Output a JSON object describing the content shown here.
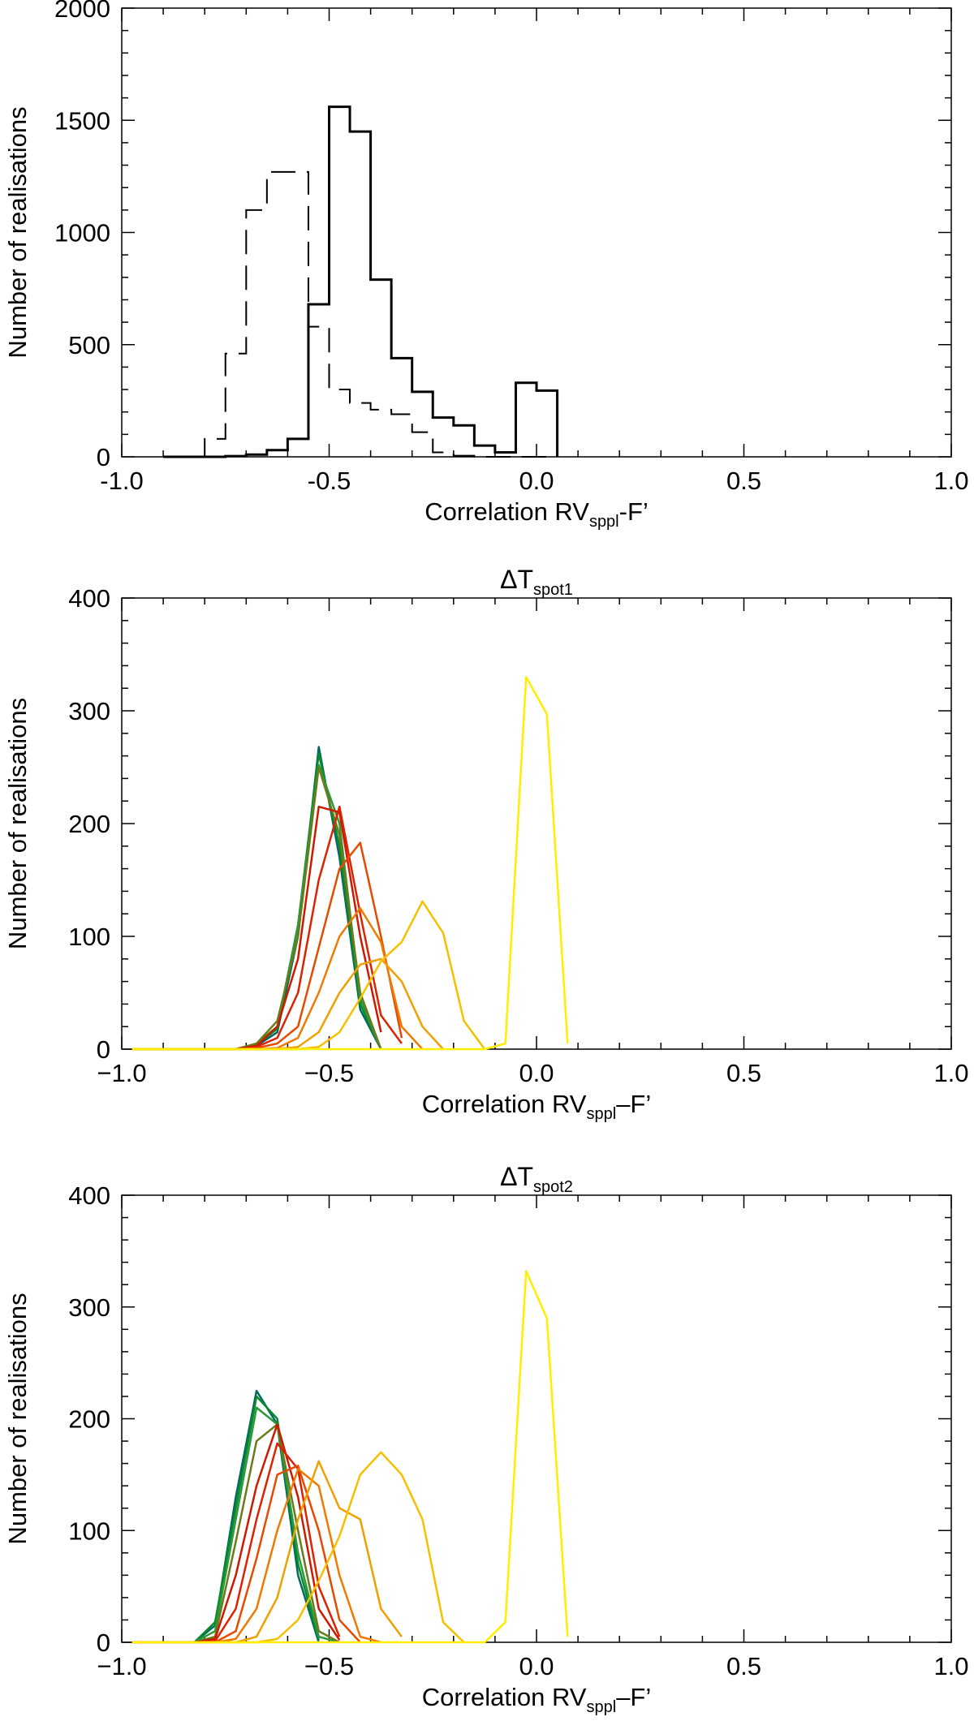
{
  "chart_data": [
    {
      "type": "line",
      "style": "histogram-step",
      "title": "",
      "xlabel_main": "Correlation RV",
      "xlabel_sub": "sppl",
      "xlabel_tail": "-F’",
      "ylabel": "Number of realisations",
      "xlim": [
        -1.0,
        1.0
      ],
      "ylim": [
        0,
        2000
      ],
      "x_ticks": [
        "-1.0",
        "-0.5",
        "0.0",
        "0.5",
        "1.0"
      ],
      "x_tick_values": [
        -1.0,
        -0.5,
        0.0,
        0.5,
        1.0
      ],
      "y_ticks": [
        "2000",
        "1500",
        "1000",
        "500",
        "0"
      ],
      "y_tick_values": [
        2000,
        1500,
        1000,
        500,
        0
      ],
      "grid": false,
      "bin_edges": [
        -0.9,
        -0.85,
        -0.8,
        -0.75,
        -0.7,
        -0.65,
        -0.6,
        -0.55,
        -0.5,
        -0.45,
        -0.4,
        -0.35,
        -0.3,
        -0.25,
        -0.2,
        -0.15,
        -0.1,
        -0.05,
        0.0,
        0.05
      ],
      "series": [
        {
          "line": "solid",
          "color": "#000000",
          "values": [
            0,
            0,
            0,
            3,
            10,
            30,
            80,
            680,
            1560,
            1450,
            790,
            440,
            290,
            175,
            140,
            50,
            20,
            330,
            295
          ]
        },
        {
          "line": "dashed",
          "color": "#000000",
          "values": [
            0,
            0,
            80,
            460,
            1100,
            1270,
            1270,
            580,
            300,
            240,
            210,
            190,
            110,
            20,
            5,
            0,
            0,
            0,
            0
          ]
        }
      ]
    },
    {
      "type": "line",
      "title_main": "ΔT",
      "title_sub": "spot1",
      "xlabel_main": "Correlation RV",
      "xlabel_sub": "sppl",
      "xlabel_tail": "–F’",
      "ylabel": "Number of realisations",
      "xlim": [
        -1.0,
        1.0
      ],
      "ylim": [
        0,
        400
      ],
      "x_ticks": [
        "−1.0",
        "−0.5",
        "0.0",
        "0.5",
        "1.0"
      ],
      "x_tick_values": [
        -1.0,
        -0.5,
        0.0,
        0.5,
        1.0
      ],
      "y_ticks": [
        "400",
        "300",
        "200",
        "100",
        "0"
      ],
      "y_tick_values": [
        400,
        300,
        200,
        100,
        0
      ],
      "grid": false,
      "x": [
        -0.975,
        -0.925,
        -0.875,
        -0.825,
        -0.775,
        -0.725,
        -0.675,
        -0.625,
        -0.575,
        -0.525,
        -0.475,
        -0.425,
        -0.375,
        -0.325,
        -0.275,
        -0.225,
        -0.175,
        -0.125,
        -0.075,
        -0.025,
        0.025,
        0.075
      ],
      "series": [
        {
          "color": "#006a60",
          "values": [
            0,
            0,
            0,
            0,
            0,
            0,
            3,
            15,
            100,
            268,
            170,
            35,
            0,
            null,
            null,
            null,
            null,
            null,
            null,
            null,
            null,
            null
          ]
        },
        {
          "color": "#0a8a2a",
          "values": [
            0,
            0,
            0,
            0,
            0,
            0,
            4,
            18,
            110,
            262,
            180,
            40,
            0,
            null,
            null,
            null,
            null,
            null,
            null,
            null,
            null,
            null
          ]
        },
        {
          "color": "#2a9a3a",
          "values": [
            0,
            0,
            0,
            0,
            0,
            0,
            5,
            20,
            110,
            252,
            200,
            45,
            0,
            null,
            null,
            null,
            null,
            null,
            null,
            null,
            null,
            null
          ]
        },
        {
          "color": "#6b7a1a",
          "values": [
            0,
            0,
            0,
            0,
            0,
            0,
            5,
            25,
            100,
            250,
            190,
            50,
            0,
            null,
            null,
            null,
            null,
            null,
            null,
            null,
            null,
            null
          ]
        },
        {
          "color": "#cc1a00",
          "values": [
            0,
            0,
            0,
            0,
            0,
            0,
            3,
            20,
            80,
            215,
            210,
            100,
            15,
            null,
            null,
            null,
            null,
            null,
            null,
            null,
            null,
            null
          ]
        },
        {
          "color": "#dd2200",
          "values": [
            0,
            0,
            0,
            0,
            0,
            0,
            2,
            10,
            50,
            150,
            215,
            120,
            30,
            5,
            null,
            null,
            null,
            null,
            null,
            null,
            null,
            null
          ]
        },
        {
          "color": "#e64a00",
          "values": [
            0,
            0,
            0,
            0,
            0,
            0,
            1,
            5,
            20,
            90,
            160,
            183,
            100,
            10,
            null,
            null,
            null,
            null,
            null,
            null,
            null,
            null
          ]
        },
        {
          "color": "#f07a00",
          "values": [
            0,
            0,
            0,
            0,
            0,
            0,
            0,
            1,
            10,
            50,
            100,
            125,
            95,
            20,
            0,
            null,
            null,
            null,
            null,
            null,
            null,
            null
          ]
        },
        {
          "color": "#f0a000",
          "values": [
            0,
            0,
            0,
            0,
            0,
            0,
            0,
            0,
            2,
            15,
            50,
            75,
            80,
            60,
            20,
            0,
            null,
            null,
            null,
            null,
            null,
            null
          ]
        },
        {
          "color": "#f5c000",
          "values": [
            0,
            0,
            0,
            0,
            0,
            0,
            0,
            0,
            0,
            2,
            15,
            45,
            78,
            95,
            131,
            103,
            25,
            0,
            null,
            null,
            null,
            null
          ]
        },
        {
          "color": "#ffee00",
          "values": [
            0,
            0,
            0,
            0,
            0,
            0,
            0,
            0,
            0,
            0,
            0,
            0,
            0,
            0,
            0,
            0,
            0,
            0,
            5,
            330,
            297,
            5
          ]
        }
      ]
    },
    {
      "type": "line",
      "title_main": "ΔT",
      "title_sub": "spot2",
      "xlabel_main": "Correlation RV",
      "xlabel_sub": "sppl",
      "xlabel_tail": "–F’",
      "ylabel": "Number of realisations",
      "xlim": [
        -1.0,
        1.0
      ],
      "ylim": [
        0,
        400
      ],
      "x_ticks": [
        "−1.0",
        "−0.5",
        "0.0",
        "0.5",
        "1.0"
      ],
      "x_tick_values": [
        -1.0,
        -0.5,
        0.0,
        0.5,
        1.0
      ],
      "y_ticks": [
        "400",
        "300",
        "200",
        "100",
        "0"
      ],
      "y_tick_values": [
        400,
        300,
        200,
        100,
        0
      ],
      "grid": false,
      "x": [
        -0.975,
        -0.925,
        -0.875,
        -0.825,
        -0.775,
        -0.725,
        -0.675,
        -0.625,
        -0.575,
        -0.525,
        -0.475,
        -0.425,
        -0.375,
        -0.325,
        -0.275,
        -0.225,
        -0.175,
        -0.125,
        -0.075,
        -0.025,
        0.025,
        0.075
      ],
      "series": [
        {
          "color": "#006a60",
          "values": [
            0,
            0,
            0,
            0,
            15,
            130,
            225,
            195,
            60,
            0,
            null,
            null,
            null,
            null,
            null,
            null,
            null,
            null,
            null,
            null,
            null,
            null
          ]
        },
        {
          "color": "#0a8a2a",
          "values": [
            0,
            0,
            0,
            0,
            18,
            120,
            220,
            200,
            70,
            2,
            null,
            null,
            null,
            null,
            null,
            null,
            null,
            null,
            null,
            null,
            null,
            null
          ]
        },
        {
          "color": "#2a9a3a",
          "values": [
            0,
            0,
            0,
            0,
            10,
            110,
            210,
            195,
            80,
            5,
            0,
            null,
            null,
            null,
            null,
            null,
            null,
            null,
            null,
            null,
            null,
            null
          ]
        },
        {
          "color": "#6b7a1a",
          "values": [
            0,
            0,
            0,
            0,
            5,
            90,
            180,
            195,
            100,
            10,
            0,
            null,
            null,
            null,
            null,
            null,
            null,
            null,
            null,
            null,
            null,
            null
          ]
        },
        {
          "color": "#cc1a00",
          "values": [
            0,
            0,
            0,
            0,
            3,
            60,
            140,
            195,
            130,
            30,
            2,
            null,
            null,
            null,
            null,
            null,
            null,
            null,
            null,
            null,
            null,
            null
          ]
        },
        {
          "color": "#dd2200",
          "values": [
            0,
            0,
            0,
            0,
            1,
            30,
            110,
            178,
            155,
            50,
            5,
            null,
            null,
            null,
            null,
            null,
            null,
            null,
            null,
            null,
            null,
            null
          ]
        },
        {
          "color": "#e64a00",
          "values": [
            0,
            0,
            0,
            0,
            0,
            10,
            75,
            150,
            158,
            100,
            20,
            0,
            null,
            null,
            null,
            null,
            null,
            null,
            null,
            null,
            null,
            null
          ]
        },
        {
          "color": "#f07a00",
          "values": [
            0,
            0,
            0,
            0,
            0,
            3,
            30,
            100,
            155,
            140,
            60,
            5,
            0,
            null,
            null,
            null,
            null,
            null,
            null,
            null,
            null,
            null
          ]
        },
        {
          "color": "#f0a000",
          "values": [
            0,
            0,
            0,
            0,
            0,
            0,
            5,
            40,
            110,
            162,
            120,
            110,
            30,
            5,
            null,
            null,
            null,
            null,
            null,
            null,
            null,
            null
          ]
        },
        {
          "color": "#f5c000",
          "values": [
            0,
            0,
            0,
            0,
            0,
            0,
            0,
            3,
            20,
            55,
            95,
            150,
            170,
            150,
            110,
            18,
            0,
            null,
            null,
            null,
            null,
            null
          ]
        },
        {
          "color": "#ffee00",
          "values": [
            0,
            0,
            0,
            0,
            0,
            0,
            0,
            0,
            0,
            0,
            0,
            0,
            0,
            0,
            0,
            0,
            0,
            0,
            18,
            332,
            290,
            5
          ]
        }
      ]
    }
  ]
}
